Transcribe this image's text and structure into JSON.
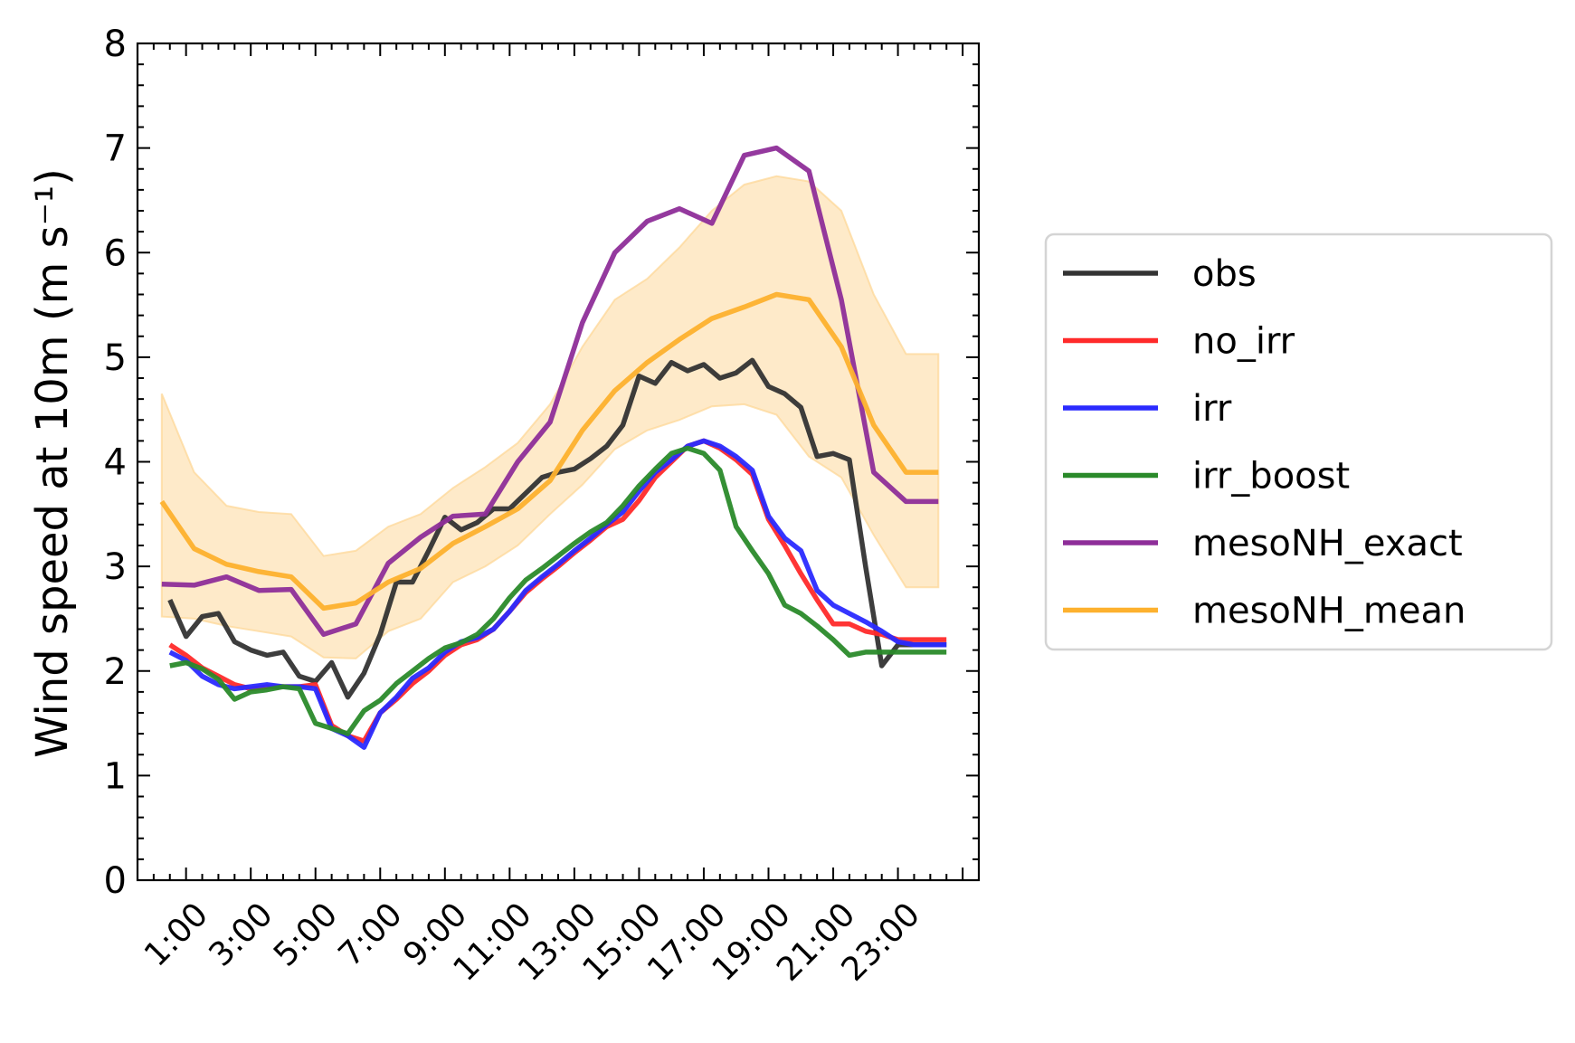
{
  "chart_data": {
    "type": "line",
    "title": "",
    "xlabel": "",
    "ylabel": "Wind speed at 10m (m s⁻¹)",
    "ylim": [
      0,
      8
    ],
    "xlim": [
      -0.5,
      25.5
    ],
    "yticks": [
      "0",
      "1",
      "2",
      "3",
      "4",
      "5",
      "6",
      "7",
      "8"
    ],
    "xtick_labels": [
      {
        "x": 1,
        "label": "1:00"
      },
      {
        "x": 3,
        "label": "3:00"
      },
      {
        "x": 5,
        "label": "5:00"
      },
      {
        "x": 7,
        "label": "7:00"
      },
      {
        "x": 9,
        "label": "9:00"
      },
      {
        "x": 11,
        "label": "11:00"
      },
      {
        "x": 13,
        "label": "13:00"
      },
      {
        "x": 15,
        "label": "15:00"
      },
      {
        "x": 17,
        "label": "17:00"
      },
      {
        "x": 19,
        "label": "19:00"
      },
      {
        "x": 21,
        "label": "21:00"
      },
      {
        "x": 23,
        "label": "23:00"
      }
    ],
    "grid": false,
    "legend_position": "right, outside plot",
    "band": {
      "color": "#fdd593",
      "x": [
        0.25,
        1.25,
        2.25,
        3.25,
        4.25,
        5.25,
        6.25,
        7.25,
        8.25,
        9.25,
        10.25,
        11.25,
        12.25,
        13.25,
        14.25,
        15.25,
        16.25,
        17.25,
        18.25,
        19.25,
        20.25,
        21.25,
        22.25,
        23.25,
        24.25
      ],
      "upper": [
        4.65,
        3.9,
        3.58,
        3.52,
        3.5,
        3.1,
        3.15,
        3.38,
        3.5,
        3.75,
        3.95,
        4.18,
        4.55,
        5.1,
        5.55,
        5.75,
        6.05,
        6.4,
        6.65,
        6.73,
        6.68,
        6.4,
        5.6,
        5.03,
        5.03
      ],
      "lower": [
        2.52,
        2.5,
        2.43,
        2.38,
        2.33,
        2.13,
        2.12,
        2.38,
        2.5,
        2.85,
        3.0,
        3.2,
        3.5,
        3.78,
        4.12,
        4.3,
        4.4,
        4.53,
        4.55,
        4.45,
        4.05,
        3.85,
        3.3,
        2.8,
        2.8
      ]
    },
    "series": [
      {
        "name": "obs",
        "color": "#333333",
        "x": [
          0.5,
          1.0,
          1.5,
          2.0,
          2.5,
          3.0,
          3.5,
          4.0,
          4.5,
          5.0,
          5.5,
          6.0,
          6.5,
          7.0,
          7.5,
          8.0,
          8.5,
          9.0,
          9.5,
          10.0,
          10.5,
          11.0,
          11.5,
          12.0,
          12.5,
          13.0,
          13.5,
          14.0,
          14.5,
          15.0,
          15.5,
          16.0,
          16.5,
          17.0,
          17.5,
          18.0,
          18.5,
          19.0,
          19.5,
          20.0,
          20.5,
          21.0,
          21.5,
          22.0,
          22.5,
          23.0,
          23.5,
          24.0,
          24.5
        ],
        "y": [
          2.68,
          2.33,
          2.52,
          2.55,
          2.28,
          2.2,
          2.15,
          2.18,
          1.95,
          1.9,
          2.08,
          1.75,
          1.98,
          2.35,
          2.85,
          2.85,
          3.15,
          3.47,
          3.35,
          3.42,
          3.55,
          3.55,
          3.7,
          3.85,
          3.9,
          3.93,
          4.03,
          4.15,
          4.35,
          4.82,
          4.75,
          4.95,
          4.87,
          4.93,
          4.8,
          4.85,
          4.97,
          4.72,
          4.65,
          4.52,
          4.05,
          4.08,
          4.02,
          3.0,
          2.05,
          2.25,
          2.25,
          2.25,
          2.25
        ]
      },
      {
        "name": "no_irr",
        "color": "#ff2a2a",
        "x": [
          0.5,
          1.0,
          1.5,
          2.0,
          2.5,
          3.0,
          3.5,
          4.0,
          4.5,
          5.0,
          5.5,
          6.0,
          6.5,
          7.0,
          7.5,
          8.0,
          8.5,
          9.0,
          9.5,
          10.0,
          10.5,
          11.0,
          11.5,
          12.0,
          12.5,
          13.0,
          13.5,
          14.0,
          14.5,
          15.0,
          15.5,
          16.0,
          16.5,
          17.0,
          17.5,
          18.0,
          18.5,
          19.0,
          19.5,
          20.0,
          20.5,
          21.0,
          21.5,
          22.0,
          22.5,
          23.0,
          23.5,
          24.0,
          24.5
        ],
        "y": [
          2.25,
          2.15,
          2.03,
          1.95,
          1.87,
          1.83,
          1.85,
          1.85,
          1.85,
          1.87,
          1.48,
          1.38,
          1.33,
          1.6,
          1.73,
          1.88,
          2.0,
          2.15,
          2.25,
          2.3,
          2.4,
          2.57,
          2.75,
          2.88,
          3.0,
          3.13,
          3.25,
          3.38,
          3.45,
          3.63,
          3.85,
          4.0,
          4.15,
          4.2,
          4.13,
          4.02,
          3.88,
          3.45,
          3.2,
          2.93,
          2.68,
          2.45,
          2.45,
          2.38,
          2.35,
          2.3,
          2.3,
          2.3,
          2.3
        ]
      },
      {
        "name": "irr",
        "color": "#2a2aff",
        "x": [
          0.5,
          1.0,
          1.5,
          2.0,
          2.5,
          3.0,
          3.5,
          4.0,
          4.5,
          5.0,
          5.5,
          6.0,
          6.5,
          7.0,
          7.5,
          8.0,
          8.5,
          9.0,
          9.5,
          10.0,
          10.5,
          11.0,
          11.5,
          12.0,
          12.5,
          13.0,
          13.5,
          14.0,
          14.5,
          15.0,
          15.5,
          16.0,
          16.5,
          17.0,
          17.5,
          18.0,
          18.5,
          19.0,
          19.5,
          20.0,
          20.5,
          21.0,
          21.5,
          22.0,
          22.5,
          23.0,
          23.5,
          24.0,
          24.5
        ],
        "y": [
          2.18,
          2.1,
          1.95,
          1.87,
          1.83,
          1.85,
          1.87,
          1.85,
          1.85,
          1.83,
          1.45,
          1.38,
          1.27,
          1.6,
          1.75,
          1.93,
          2.03,
          2.18,
          2.28,
          2.32,
          2.4,
          2.57,
          2.77,
          2.9,
          3.02,
          3.15,
          3.27,
          3.4,
          3.52,
          3.72,
          3.9,
          4.02,
          4.15,
          4.2,
          4.15,
          4.05,
          3.92,
          3.48,
          3.27,
          3.15,
          2.77,
          2.63,
          2.55,
          2.47,
          2.38,
          2.28,
          2.25,
          2.25,
          2.25
        ]
      },
      {
        "name": "irr_boost",
        "color": "#2a8a2a",
        "x": [
          0.5,
          1.0,
          1.5,
          2.0,
          2.5,
          3.0,
          3.5,
          4.0,
          4.5,
          5.0,
          5.5,
          6.0,
          6.5,
          7.0,
          7.5,
          8.0,
          8.5,
          9.0,
          9.5,
          10.0,
          10.5,
          11.0,
          11.5,
          12.0,
          12.5,
          13.0,
          13.5,
          14.0,
          14.5,
          15.0,
          15.5,
          16.0,
          16.5,
          17.0,
          17.5,
          18.0,
          18.5,
          19.0,
          19.5,
          20.0,
          20.5,
          21.0,
          21.5,
          22.0,
          22.5,
          23.0,
          23.5,
          24.0,
          24.5
        ],
        "y": [
          2.05,
          2.08,
          2.02,
          1.92,
          1.73,
          1.8,
          1.82,
          1.85,
          1.83,
          1.5,
          1.45,
          1.4,
          1.62,
          1.72,
          1.88,
          2.0,
          2.12,
          2.22,
          2.27,
          2.35,
          2.5,
          2.7,
          2.87,
          2.98,
          3.1,
          3.22,
          3.33,
          3.42,
          3.58,
          3.77,
          3.93,
          4.08,
          4.13,
          4.08,
          3.92,
          3.38,
          3.15,
          2.93,
          2.63,
          2.55,
          2.43,
          2.3,
          2.15,
          2.18,
          2.18,
          2.18,
          2.18,
          2.18,
          2.18
        ]
      },
      {
        "name": "mesoNH_exact",
        "color": "#8e2e99",
        "x": [
          0.25,
          1.25,
          2.25,
          3.25,
          4.25,
          5.25,
          6.25,
          7.25,
          8.25,
          9.25,
          10.25,
          11.25,
          12.25,
          13.25,
          14.25,
          15.25,
          16.25,
          17.25,
          18.25,
          19.25,
          20.25,
          21.25,
          22.25,
          23.25,
          24.25
        ],
        "y": [
          2.83,
          2.82,
          2.9,
          2.77,
          2.78,
          2.35,
          2.45,
          3.03,
          3.28,
          3.48,
          3.5,
          4.0,
          4.38,
          5.33,
          6.0,
          6.3,
          6.42,
          6.28,
          6.93,
          7.0,
          6.78,
          5.55,
          3.9,
          3.62,
          3.62
        ]
      },
      {
        "name": "mesoNH_mean",
        "color": "#fdb12e",
        "x": [
          0.25,
          1.25,
          2.25,
          3.25,
          4.25,
          5.25,
          6.25,
          7.25,
          8.25,
          9.25,
          10.25,
          11.25,
          12.25,
          13.25,
          14.25,
          15.25,
          16.25,
          17.25,
          18.25,
          19.25,
          20.25,
          21.25,
          22.25,
          23.25,
          24.25
        ],
        "y": [
          3.62,
          3.17,
          3.02,
          2.95,
          2.9,
          2.6,
          2.65,
          2.85,
          2.98,
          3.22,
          3.38,
          3.55,
          3.82,
          4.3,
          4.68,
          4.95,
          5.17,
          5.37,
          5.48,
          5.6,
          5.55,
          5.1,
          4.35,
          3.9,
          3.9
        ]
      }
    ]
  }
}
